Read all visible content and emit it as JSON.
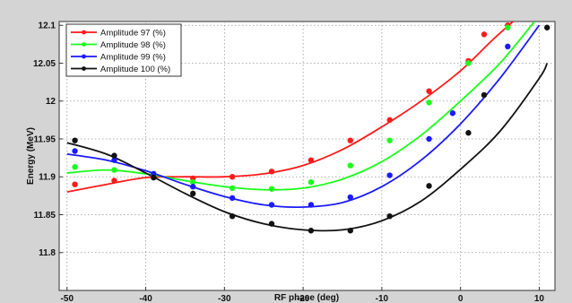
{
  "chart_data": {
    "type": "line",
    "title": "",
    "xlabel": "RF phase (deg)",
    "ylabel": "Energy (MeV)",
    "xlim": [
      -51,
      12
    ],
    "ylim": [
      11.75,
      12.105
    ],
    "xticks": [
      "-50",
      "-40",
      "-30",
      "-20",
      "-10",
      "0",
      "10"
    ],
    "yticks": [
      "11.8",
      "11.85",
      "11.9",
      "11.95",
      "12",
      "12.05",
      "12.1"
    ],
    "grid": true,
    "legend_position": "top-left",
    "series": [
      {
        "name": "Amplitude 97 (%)",
        "color": "#ff1a1a",
        "points": [
          [
            -49,
            11.89
          ],
          [
            -44,
            11.895
          ],
          [
            -39,
            11.9
          ],
          [
            -34,
            11.898
          ],
          [
            -29,
            11.9
          ],
          [
            -24,
            11.907
          ],
          [
            -19,
            11.922
          ],
          [
            -14,
            11.948
          ],
          [
            -9,
            11.975
          ],
          [
            -4,
            12.013
          ],
          [
            1,
            12.053
          ],
          [
            3,
            12.088
          ],
          [
            6,
            12.1
          ]
        ],
        "fit": [
          [
            -50,
            11.88
          ],
          [
            -45,
            11.89
          ],
          [
            -40,
            11.899
          ],
          [
            -35,
            11.9
          ],
          [
            -30,
            11.9
          ],
          [
            -25,
            11.904
          ],
          [
            -20,
            11.915
          ],
          [
            -15,
            11.936
          ],
          [
            -10,
            11.966
          ],
          [
            -5,
            12.0
          ],
          [
            0,
            12.04
          ],
          [
            4,
            12.08
          ],
          [
            7.2,
            12.11
          ]
        ]
      },
      {
        "name": "Amplitude 98 (%)",
        "color": "#1aff1a",
        "points": [
          [
            -49,
            11.913
          ],
          [
            -44,
            11.909
          ],
          [
            -39,
            11.903
          ],
          [
            -34,
            11.893
          ],
          [
            -29,
            11.885
          ],
          [
            -24,
            11.884
          ],
          [
            -19,
            11.893
          ],
          [
            -14,
            11.915
          ],
          [
            -9,
            11.948
          ],
          [
            -4,
            11.998
          ],
          [
            1,
            12.05
          ],
          [
            6,
            12.097
          ]
        ],
        "fit": [
          [
            -50,
            11.905
          ],
          [
            -45,
            11.909
          ],
          [
            -40,
            11.904
          ],
          [
            -35,
            11.895
          ],
          [
            -30,
            11.887
          ],
          [
            -25,
            11.883
          ],
          [
            -20,
            11.885
          ],
          [
            -15,
            11.897
          ],
          [
            -10,
            11.92
          ],
          [
            -5,
            11.955
          ],
          [
            0,
            12.0
          ],
          [
            5,
            12.05
          ],
          [
            9.4,
            12.105
          ]
        ]
      },
      {
        "name": "Amplitude 99 (%)",
        "color": "#1a1aff",
        "points": [
          [
            -49,
            11.934
          ],
          [
            -44,
            11.922
          ],
          [
            -39,
            11.904
          ],
          [
            -34,
            11.887
          ],
          [
            -29,
            11.872
          ],
          [
            -24,
            11.863
          ],
          [
            -19,
            11.863
          ],
          [
            -14,
            11.873
          ],
          [
            -9,
            11.902
          ],
          [
            -4,
            11.95
          ],
          [
            -1,
            11.984
          ],
          [
            6,
            12.072
          ]
        ],
        "fit": [
          [
            -50,
            11.93
          ],
          [
            -45,
            11.922
          ],
          [
            -40,
            11.908
          ],
          [
            -35,
            11.89
          ],
          [
            -30,
            11.874
          ],
          [
            -25,
            11.863
          ],
          [
            -20,
            11.86
          ],
          [
            -15,
            11.866
          ],
          [
            -10,
            11.887
          ],
          [
            -5,
            11.922
          ],
          [
            0,
            11.97
          ],
          [
            5,
            12.03
          ],
          [
            10,
            12.1
          ]
        ]
      },
      {
        "name": "Amplitude 100 (%)",
        "color": "#111111",
        "points": [
          [
            -49,
            11.948
          ],
          [
            -44,
            11.928
          ],
          [
            -39,
            11.899
          ],
          [
            -34,
            11.878
          ],
          [
            -29,
            11.848
          ],
          [
            -24,
            11.838
          ],
          [
            -19,
            11.829
          ],
          [
            -14,
            11.829
          ],
          [
            -9,
            11.848
          ],
          [
            -4,
            11.888
          ],
          [
            1,
            11.958
          ],
          [
            3,
            12.008
          ],
          [
            11,
            12.097
          ]
        ],
        "fit": [
          [
            -50,
            11.945
          ],
          [
            -45,
            11.93
          ],
          [
            -40,
            11.905
          ],
          [
            -35,
            11.878
          ],
          [
            -30,
            11.854
          ],
          [
            -25,
            11.838
          ],
          [
            -20,
            11.83
          ],
          [
            -15,
            11.83
          ],
          [
            -10,
            11.842
          ],
          [
            -5,
            11.868
          ],
          [
            0,
            11.91
          ],
          [
            5,
            11.96
          ],
          [
            10,
            12.03
          ],
          [
            11,
            12.05
          ]
        ]
      }
    ]
  }
}
